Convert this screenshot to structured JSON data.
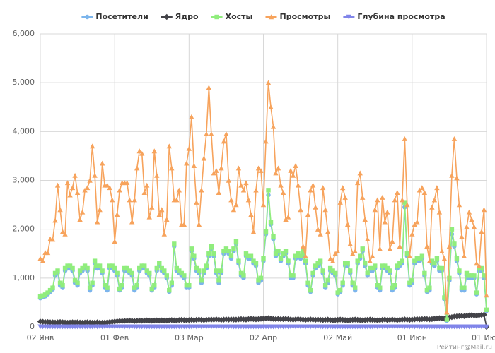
{
  "chart_data": {
    "type": "line",
    "categories": [
      "02 Янв",
      null,
      null,
      null,
      null,
      null,
      null,
      null,
      null,
      null,
      null,
      null,
      null,
      null,
      null,
      null,
      null,
      null,
      null,
      null,
      null,
      null,
      null,
      null,
      null,
      null,
      null,
      null,
      null,
      null,
      "01 Фев",
      null,
      null,
      null,
      null,
      null,
      null,
      null,
      null,
      null,
      null,
      null,
      null,
      null,
      null,
      null,
      null,
      null,
      null,
      null,
      null,
      null,
      null,
      null,
      null,
      null,
      null,
      null,
      null,
      null,
      "03 Мар",
      null,
      null,
      null,
      null,
      null,
      null,
      null,
      null,
      null,
      null,
      null,
      null,
      null,
      null,
      null,
      null,
      null,
      null,
      null,
      null,
      null,
      null,
      null,
      null,
      null,
      null,
      null,
      null,
      null,
      "02 Апр",
      null,
      null,
      null,
      null,
      null,
      null,
      null,
      null,
      null,
      null,
      null,
      null,
      null,
      null,
      null,
      null,
      null,
      null,
      null,
      null,
      null,
      null,
      null,
      null,
      null,
      null,
      null,
      null,
      null,
      "02 Май",
      null,
      null,
      null,
      null,
      null,
      null,
      null,
      null,
      null,
      null,
      null,
      null,
      null,
      null,
      null,
      null,
      null,
      null,
      null,
      null,
      null,
      null,
      null,
      null,
      null,
      null,
      null,
      null,
      null,
      "01 Июн",
      null,
      null,
      null,
      null,
      null,
      null,
      null,
      null,
      null,
      null,
      null,
      null,
      null,
      null,
      null,
      null,
      null,
      null,
      null,
      null,
      null,
      null,
      null,
      null,
      null,
      null,
      null,
      null,
      null,
      "01 Июл"
    ],
    "series": [
      {
        "name": "Посетители",
        "color": "#7cb5ec",
        "marker": "circle",
        "values": [
          590,
          610,
          630,
          670,
          720,
          770,
          1050,
          1100,
          850,
          800,
          1150,
          1200,
          1200,
          1150,
          900,
          850,
          1100,
          1150,
          1200,
          1150,
          750,
          850,
          1300,
          1200,
          1200,
          1100,
          800,
          750,
          1200,
          1200,
          1150,
          1050,
          750,
          800,
          1150,
          1150,
          1100,
          1050,
          750,
          800,
          1150,
          1200,
          1200,
          1100,
          1050,
          750,
          800,
          1150,
          1250,
          1150,
          1100,
          1000,
          720,
          850,
          1650,
          1150,
          1100,
          1050,
          1000,
          800,
          800,
          1550,
          1400,
          1150,
          1100,
          900,
          1100,
          1200,
          1450,
          1600,
          1450,
          1100,
          900,
          1100,
          1500,
          1550,
          1500,
          1400,
          1550,
          1700,
          1300,
          1050,
          1000,
          1450,
          1400,
          1400,
          1300,
          1250,
          900,
          950,
          1350,
          1900,
          2700,
          2100,
          1800,
          1450,
          1500,
          1350,
          1450,
          1500,
          1300,
          1000,
          1000,
          1400,
          1450,
          1400,
          1500,
          1300,
          850,
          720,
          1050,
          1200,
          1250,
          1300,
          1100,
          800,
          900,
          1150,
          1100,
          1050,
          670,
          720,
          850,
          1250,
          1250,
          1100,
          850,
          750,
          1300,
          1400,
          1550,
          1250,
          1050,
          1150,
          1150,
          1200,
          800,
          750,
          1200,
          1200,
          1150,
          1100,
          750,
          800,
          1200,
          1250,
          1300,
          2450,
          1450,
          850,
          900,
          1300,
          1350,
          1350,
          1400,
          1050,
          720,
          750,
          1300,
          1250,
          1350,
          1150,
          1150,
          570,
          130,
          950,
          1900,
          1650,
          1350,
          1100,
          750,
          750,
          1050,
          1000,
          1000,
          1000,
          670,
          1150,
          1150,
          1000,
          330
        ]
      },
      {
        "name": "Ядро",
        "color": "#434348",
        "marker": "diamond",
        "values": [
          110,
          105,
          100,
          100,
          95,
          95,
          90,
          95,
          100,
          95,
          90,
          85,
          90,
          95,
          90,
          95,
          90,
          85,
          90,
          95,
          90,
          85,
          90,
          95,
          90,
          85,
          90,
          95,
          100,
          105,
          110,
          115,
          120,
          120,
          125,
          125,
          130,
          125,
          120,
          125,
          130,
          125,
          130,
          135,
          130,
          125,
          130,
          135,
          130,
          135,
          130,
          130,
          135,
          140,
          135,
          130,
          140,
          145,
          140,
          135,
          140,
          145,
          140,
          145,
          150,
          145,
          140,
          145,
          150,
          150,
          150,
          155,
          150,
          145,
          150,
          155,
          150,
          155,
          150,
          150,
          155,
          160,
          155,
          150,
          160,
          165,
          160,
          155,
          160,
          165,
          170,
          175,
          180,
          170,
          165,
          160,
          165,
          160,
          160,
          165,
          160,
          155,
          150,
          155,
          160,
          155,
          150,
          145,
          150,
          155,
          150,
          145,
          150,
          145,
          140,
          145,
          150,
          140,
          135,
          140,
          145,
          150,
          145,
          140,
          135,
          140,
          145,
          150,
          145,
          140,
          135,
          140,
          145,
          150,
          145,
          140,
          135,
          140,
          145,
          150,
          140,
          145,
          150,
          145,
          140,
          145,
          150,
          155,
          150,
          145,
          150,
          155,
          160,
          155,
          160,
          165,
          160,
          155,
          160,
          170,
          175,
          180,
          175,
          170,
          180,
          190,
          200,
          210,
          215,
          220,
          225,
          220,
          230,
          235,
          240,
          235,
          230,
          240,
          245,
          250,
          0
        ]
      },
      {
        "name": "Хосты",
        "color": "#90ed7d",
        "marker": "square",
        "values": [
          620,
          640,
          660,
          700,
          750,
          800,
          1100,
          1150,
          900,
          850,
          1200,
          1250,
          1250,
          1200,
          950,
          900,
          1150,
          1200,
          1250,
          1200,
          800,
          900,
          1350,
          1250,
          1250,
          1150,
          850,
          800,
          1250,
          1250,
          1200,
          1100,
          780,
          850,
          1200,
          1200,
          1150,
          1100,
          800,
          850,
          1200,
          1250,
          1250,
          1150,
          1100,
          780,
          850,
          1200,
          1300,
          1200,
          1150,
          1050,
          750,
          900,
          1700,
          1200,
          1150,
          1100,
          1050,
          850,
          850,
          1600,
          1450,
          1200,
          1150,
          950,
          1150,
          1250,
          1500,
          1650,
          1500,
          1150,
          950,
          1150,
          1550,
          1600,
          1550,
          1450,
          1600,
          1750,
          1350,
          1100,
          1050,
          1500,
          1450,
          1450,
          1350,
          1300,
          950,
          1000,
          1400,
          1950,
          2800,
          2150,
          1850,
          1500,
          1550,
          1400,
          1500,
          1550,
          1350,
          1050,
          1050,
          1450,
          1500,
          1450,
          1550,
          1350,
          900,
          750,
          1100,
          1250,
          1300,
          1350,
          1150,
          850,
          950,
          1200,
          1150,
          1100,
          700,
          750,
          900,
          1300,
          1300,
          1150,
          900,
          800,
          1350,
          1450,
          1600,
          1300,
          1100,
          1200,
          1200,
          1250,
          850,
          800,
          1250,
          1250,
          1200,
          1150,
          800,
          850,
          1250,
          1300,
          1350,
          2550,
          1500,
          900,
          950,
          1350,
          1400,
          1400,
          1450,
          1100,
          750,
          800,
          1350,
          1300,
          1400,
          1200,
          1200,
          600,
          150,
          1000,
          2000,
          1700,
          1400,
          1150,
          800,
          800,
          1100,
          1050,
          1050,
          1050,
          700,
          1200,
          1200,
          1050,
          350
        ]
      },
      {
        "name": "Просмотры",
        "color": "#f7a35c",
        "marker": "triangle",
        "values": [
          1400,
          1350,
          1520,
          1520,
          1800,
          1790,
          2180,
          2900,
          2400,
          1950,
          1900,
          2950,
          2700,
          2850,
          3100,
          2750,
          2200,
          2350,
          2800,
          2850,
          3000,
          3700,
          3100,
          2150,
          2400,
          3350,
          2900,
          2900,
          2850,
          2600,
          1750,
          2300,
          2800,
          2950,
          2950,
          2950,
          2600,
          2150,
          2600,
          3250,
          3600,
          3550,
          2750,
          2900,
          2250,
          2450,
          3600,
          3100,
          2300,
          2400,
          1900,
          2200,
          3700,
          3250,
          2600,
          2600,
          2800,
          2100,
          2100,
          3350,
          3650,
          4300,
          3300,
          2550,
          2100,
          2800,
          3450,
          3950,
          4900,
          3950,
          3150,
          3200,
          2750,
          3250,
          3800,
          3950,
          3000,
          2600,
          2400,
          2500,
          3250,
          2900,
          2800,
          2950,
          2600,
          2300,
          1950,
          2800,
          3250,
          3200,
          2500,
          3800,
          5000,
          4500,
          4100,
          3150,
          3250,
          2900,
          2750,
          2200,
          2250,
          3200,
          3100,
          3300,
          2900,
          2400,
          1650,
          1450,
          2300,
          2800,
          2900,
          2450,
          2000,
          1900,
          2850,
          2400,
          1950,
          1400,
          1350,
          1500,
          1550,
          2550,
          2850,
          2650,
          2100,
          1700,
          1500,
          1550,
          2950,
          3150,
          2650,
          2200,
          1800,
          1350,
          1450,
          2400,
          2600,
          1600,
          2650,
          2150,
          2350,
          1600,
          1750,
          2600,
          2750,
          1650,
          2600,
          3850,
          2500,
          1450,
          1900,
          2100,
          2150,
          2800,
          2850,
          2750,
          1650,
          1350,
          2450,
          2600,
          2850,
          2350,
          1550,
          1400,
          300,
          1650,
          3100,
          3850,
          3050,
          2500,
          1850,
          1450,
          2050,
          2350,
          2200,
          2050,
          1300,
          1250,
          1950,
          2400,
          650
        ]
      },
      {
        "name": "Глубина просмотра",
        "color": "#8085e9",
        "marker": "triangle-down",
        "values": [
          5,
          5,
          5,
          5,
          5,
          5,
          5,
          5,
          5,
          5,
          5,
          5,
          5,
          5,
          5,
          5,
          5,
          5,
          5,
          5,
          5,
          5,
          5,
          5,
          5,
          5,
          5,
          5,
          5,
          5,
          5,
          5,
          5,
          5,
          5,
          5,
          5,
          5,
          5,
          5,
          5,
          5,
          5,
          5,
          5,
          5,
          5,
          5,
          5,
          5,
          5,
          5,
          5,
          5,
          5,
          5,
          5,
          5,
          5,
          5,
          5,
          5,
          5,
          5,
          5,
          5,
          5,
          5,
          5,
          5,
          5,
          5,
          5,
          5,
          5,
          5,
          5,
          5,
          5,
          5,
          5,
          5,
          5,
          5,
          5,
          5,
          5,
          5,
          5,
          5,
          5,
          5,
          5,
          5,
          5,
          5,
          5,
          5,
          5,
          5,
          5,
          5,
          5,
          5,
          5,
          5,
          5,
          5,
          5,
          5,
          5,
          5,
          5,
          5,
          5,
          5,
          5,
          5,
          5,
          5,
          5,
          5,
          5,
          5,
          5,
          5,
          5,
          5,
          5,
          5,
          5,
          5,
          5,
          5,
          5,
          5,
          5,
          5,
          5,
          5,
          5,
          5,
          5,
          5,
          5,
          5,
          5,
          5,
          5,
          5,
          5,
          5,
          5,
          5,
          5,
          5,
          5,
          5,
          5,
          5,
          5,
          5,
          5,
          5,
          5,
          5,
          5,
          5,
          5,
          5,
          5,
          5,
          5,
          5,
          5,
          5,
          5,
          5,
          5,
          5,
          0
        ]
      }
    ],
    "ylim": [
      0,
      6000
    ],
    "yticks": [
      0,
      {
        "value": 1000,
        "label": "1,000"
      },
      {
        "value": 2000,
        "label": "2,000"
      },
      {
        "value": 3000,
        "label": "3,000"
      },
      {
        "value": 4000,
        "label": "4,000"
      },
      {
        "value": 5000,
        "label": "5,000"
      },
      {
        "value": 6000,
        "label": "6,000"
      }
    ],
    "grid": true,
    "legend": "top",
    "footer": "Рейтинг@Mail.ru"
  }
}
